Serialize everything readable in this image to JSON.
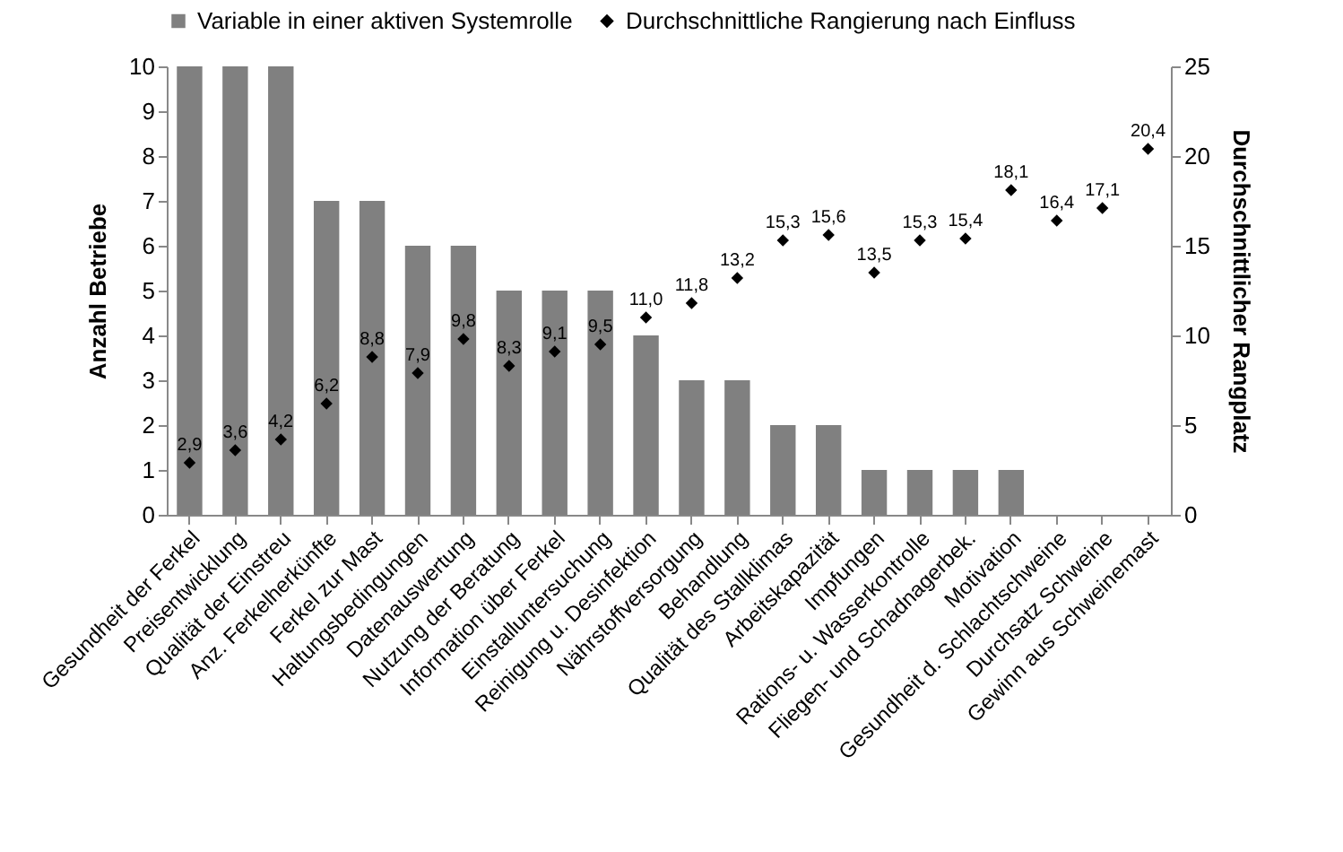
{
  "chart_data": {
    "type": "bar",
    "categories": [
      "Gesundheit der Ferkel",
      "Preisentwicklung",
      "Qualität der Einstreu",
      "Anz. Ferkelherkünfte",
      "Ferkel zur Mast",
      "Haltungsbedingungen",
      "Datenauswertung",
      "Nutzung der Beratung",
      "Information über Ferkel",
      "Einstalluntersuchung",
      "Reinigung u. Desinfektion",
      "Nährstoffversorgung",
      "Behandlung",
      "Qualität des Stallklimas",
      "Arbeitskapazität",
      "Impfungen",
      "Rations- u. Wasserkontrolle",
      "Fliegen- und Schadnagerbek.",
      "Motivation",
      "Gesundheit d. Schlachtschweine",
      "Durchsatz Schweine",
      "Gewinn aus Schweinemast"
    ],
    "series": [
      {
        "name": "Variable in einer aktiven Systemrolle",
        "color": "#808080",
        "values": [
          10,
          10,
          10,
          7,
          7,
          6,
          6,
          5,
          5,
          5,
          4,
          3,
          3,
          2,
          2,
          1,
          1,
          1,
          1,
          0,
          0,
          0
        ]
      },
      {
        "name": "Durchschnittliche Rangierung nach Einfluss",
        "type": "scatter",
        "axis": "y2",
        "color": "#000000",
        "marker": "diamond",
        "values": [
          2.9,
          3.6,
          4.2,
          6.2,
          8.8,
          7.9,
          9.8,
          8.3,
          9.1,
          9.5,
          11.0,
          11.8,
          13.2,
          15.3,
          15.6,
          13.5,
          15.3,
          15.4,
          18.1,
          16.4,
          17.1,
          20.4
        ],
        "value_labels": [
          "2,9",
          "3,6",
          "4,2",
          "6,2",
          "8,8",
          "7,9",
          "9,8",
          "8,3",
          "9,1",
          "9,5",
          "11,0",
          "11,8",
          "13,2",
          "15,3",
          "15,6",
          "13,5",
          "15,3",
          "15,4",
          "18,1",
          "16,4",
          "17,1",
          "20,4"
        ]
      }
    ],
    "ylabel": "Anzahl Betriebe",
    "y2label": "Durchschnittlicher Rangplatz",
    "ylim": [
      0,
      10
    ],
    "yticks": [
      0,
      1,
      2,
      3,
      4,
      5,
      6,
      7,
      8,
      9,
      10
    ],
    "y2lim": [
      0,
      25
    ],
    "y2ticks": [
      0,
      5,
      10,
      15,
      20,
      25
    ],
    "grid": false,
    "legend": "top"
  }
}
